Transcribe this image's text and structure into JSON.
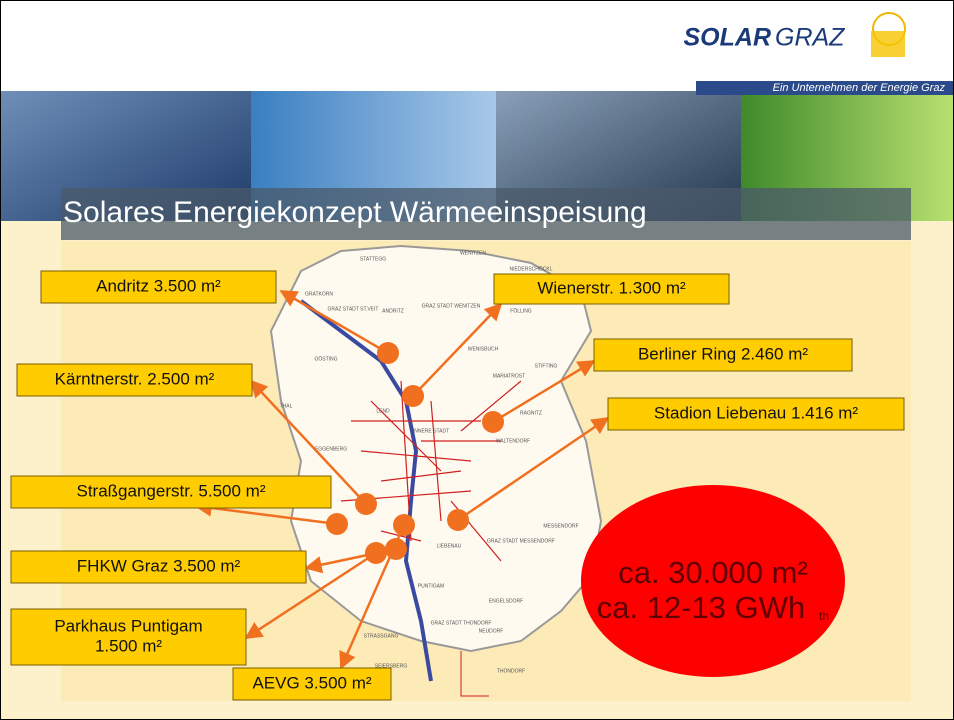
{
  "logo": {
    "name": {
      "solar": "SOLAR",
      "graz": "GRAZ"
    },
    "tagline": "Ein Unternehmen der Energie Graz"
  },
  "title": "Solares Energiekonzept Wärmeeinspeisung",
  "labels": [
    {
      "lines": [
        "Andritz 3.500 m²"
      ]
    },
    {
      "lines": [
        "Wienerstr. 1.300 m²"
      ]
    },
    {
      "lines": [
        "Berliner Ring 2.460 m²"
      ]
    },
    {
      "lines": [
        "Kärntnerstr. 2.500 m²"
      ]
    },
    {
      "lines": [
        "Stadion Liebenau 1.416 m²"
      ]
    },
    {
      "lines": [
        "Straßgangerstr. 5.500 m²"
      ]
    },
    {
      "lines": [
        "FHKW Graz 3.500 m²"
      ]
    },
    {
      "lines": [
        "Parkhaus Puntigam",
        "1.500 m²"
      ]
    },
    {
      "lines": [
        "AEVG 3.500 m²"
      ]
    }
  ],
  "map": {
    "districts": [
      "STATTEGG",
      "WENITZEN",
      "NIEDERSCHÖCKL",
      "GRATKORN",
      "GRAZ STADT ST.VEIT",
      "ANDRITZ",
      "GRAZ STADT WENITZEN",
      "FÖLLING",
      "GÖSTING",
      "WENISBUCH",
      "MARIATROST",
      "STIFTING",
      "RAGNITZ",
      "WALTENDORF",
      "THAL",
      "LEND",
      "INNERE STADT",
      "EGGENBERG",
      "LIEBENAU",
      "MESSENDORF",
      "GRAZ STADT MESSENDORF",
      "PUNTIGAM",
      "ENGELSDORF",
      "NEUDORF",
      "STRASSGANG",
      "SEIERSBERG",
      "THONDORF",
      "GRAZ STADT THONDORF"
    ]
  },
  "summary": {
    "area": "ca. 30.000 m²",
    "energy": "ca. 12-13 GWh",
    "energy_unit": "th"
  }
}
